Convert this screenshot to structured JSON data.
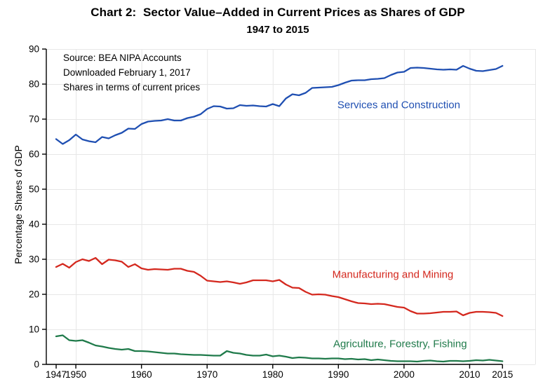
{
  "title": "Chart 2:  Sector Value–Added in Current Prices as Shares of GDP",
  "subtitle": "1947 to 2015",
  "annotations": {
    "source_lines": [
      "Source: BEA NIPA Accounts",
      "Downloaded February 1, 2017",
      "Shares in terms of current prices"
    ]
  },
  "chart_data": {
    "type": "line",
    "title": "Chart 2:  Sector Value–Added in Current Prices as Shares of GDP",
    "subtitle": "1947 to 2015",
    "xlabel": "",
    "ylabel": "Percentage Shares of GDP",
    "xlim": [
      1945.5,
      2020
    ],
    "ylim": [
      0,
      90
    ],
    "yticks": [
      0,
      10,
      20,
      30,
      40,
      50,
      60,
      70,
      80,
      90
    ],
    "xticks": [
      1947,
      1950,
      1960,
      1970,
      1980,
      1990,
      2000,
      2010,
      2015
    ],
    "grid": true,
    "legend_position": "inline-labels",
    "colors": {
      "grid": "#e7e7e7",
      "axis": "#000000",
      "background": "#ffffff"
    },
    "x": [
      1947,
      1948,
      1949,
      1950,
      1951,
      1952,
      1953,
      1954,
      1955,
      1956,
      1957,
      1958,
      1959,
      1960,
      1961,
      1962,
      1963,
      1964,
      1965,
      1966,
      1967,
      1968,
      1969,
      1970,
      1971,
      1972,
      1973,
      1974,
      1975,
      1976,
      1977,
      1978,
      1979,
      1980,
      1981,
      1982,
      1983,
      1984,
      1985,
      1986,
      1987,
      1988,
      1989,
      1990,
      1991,
      1992,
      1993,
      1994,
      1995,
      1996,
      1997,
      1998,
      1999,
      2000,
      2001,
      2002,
      2003,
      2004,
      2005,
      2006,
      2007,
      2008,
      2009,
      2010,
      2011,
      2012,
      2013,
      2014,
      2015
    ],
    "series": [
      {
        "name": "Services and Construction",
        "color": "#1f4fb2",
        "values": [
          64.3,
          62.9,
          64.0,
          65.6,
          64.2,
          63.7,
          63.4,
          64.9,
          64.5,
          65.4,
          66.1,
          67.3,
          67.2,
          68.6,
          69.3,
          69.5,
          69.6,
          70.0,
          69.6,
          69.6,
          70.3,
          70.7,
          71.4,
          72.9,
          73.7,
          73.6,
          73.0,
          73.1,
          74.0,
          73.8,
          73.9,
          73.7,
          73.6,
          74.3,
          73.7,
          75.9,
          77.1,
          76.8,
          77.5,
          78.9,
          79.0,
          79.1,
          79.2,
          79.7,
          80.4,
          81.0,
          81.1,
          81.1,
          81.4,
          81.5,
          81.7,
          82.6,
          83.3,
          83.5,
          84.6,
          84.7,
          84.6,
          84.4,
          84.2,
          84.1,
          84.2,
          84.1,
          85.2,
          84.4,
          83.8,
          83.7,
          84.0,
          84.3,
          85.2
        ]
      },
      {
        "name": "Manufacturing and Mining",
        "color": "#d4281e",
        "values": [
          27.8,
          28.7,
          27.6,
          29.2,
          30.0,
          29.5,
          30.4,
          28.6,
          29.9,
          29.7,
          29.3,
          27.8,
          28.6,
          27.4,
          27.0,
          27.2,
          27.1,
          27.0,
          27.3,
          27.3,
          26.7,
          26.4,
          25.3,
          23.9,
          23.7,
          23.5,
          23.7,
          23.4,
          23.0,
          23.4,
          24.0,
          24.0,
          24.0,
          23.7,
          24.1,
          22.8,
          21.9,
          21.8,
          20.7,
          19.9,
          20.0,
          19.9,
          19.5,
          19.2,
          18.6,
          18.0,
          17.5,
          17.4,
          17.2,
          17.3,
          17.2,
          16.8,
          16.4,
          16.2,
          15.2,
          14.5,
          14.5,
          14.6,
          14.8,
          15.0,
          15.0,
          15.1,
          14.0,
          14.7,
          15.0,
          15.0,
          14.9,
          14.7,
          13.8
        ]
      },
      {
        "name": "Agriculture, Forestry, Fishing",
        "color": "#1f7a4a",
        "values": [
          8.0,
          8.3,
          6.9,
          6.7,
          6.9,
          6.2,
          5.4,
          5.1,
          4.7,
          4.4,
          4.2,
          4.4,
          3.8,
          3.8,
          3.7,
          3.5,
          3.3,
          3.1,
          3.1,
          2.9,
          2.8,
          2.7,
          2.7,
          2.6,
          2.5,
          2.5,
          3.8,
          3.3,
          3.1,
          2.7,
          2.5,
          2.5,
          2.8,
          2.3,
          2.5,
          2.2,
          1.8,
          2.0,
          1.9,
          1.7,
          1.7,
          1.6,
          1.7,
          1.7,
          1.5,
          1.6,
          1.4,
          1.5,
          1.2,
          1.4,
          1.2,
          1.0,
          0.9,
          0.9,
          0.9,
          0.8,
          1.0,
          1.1,
          0.9,
          0.8,
          1.0,
          1.0,
          0.9,
          1.0,
          1.2,
          1.1,
          1.3,
          1.1,
          0.9
        ]
      }
    ],
    "series_labels": [
      {
        "text": "Services and Construction",
        "color": "#1f4fb2",
        "x": 1999.2,
        "y": 74.0
      },
      {
        "text": "Manufacturing and Mining",
        "color": "#d4281e",
        "x": 1998.3,
        "y": 25.6
      },
      {
        "text": "Agriculture, Forestry, Fishing",
        "color": "#1f7a4a",
        "x": 1999.4,
        "y": 5.8
      }
    ]
  }
}
